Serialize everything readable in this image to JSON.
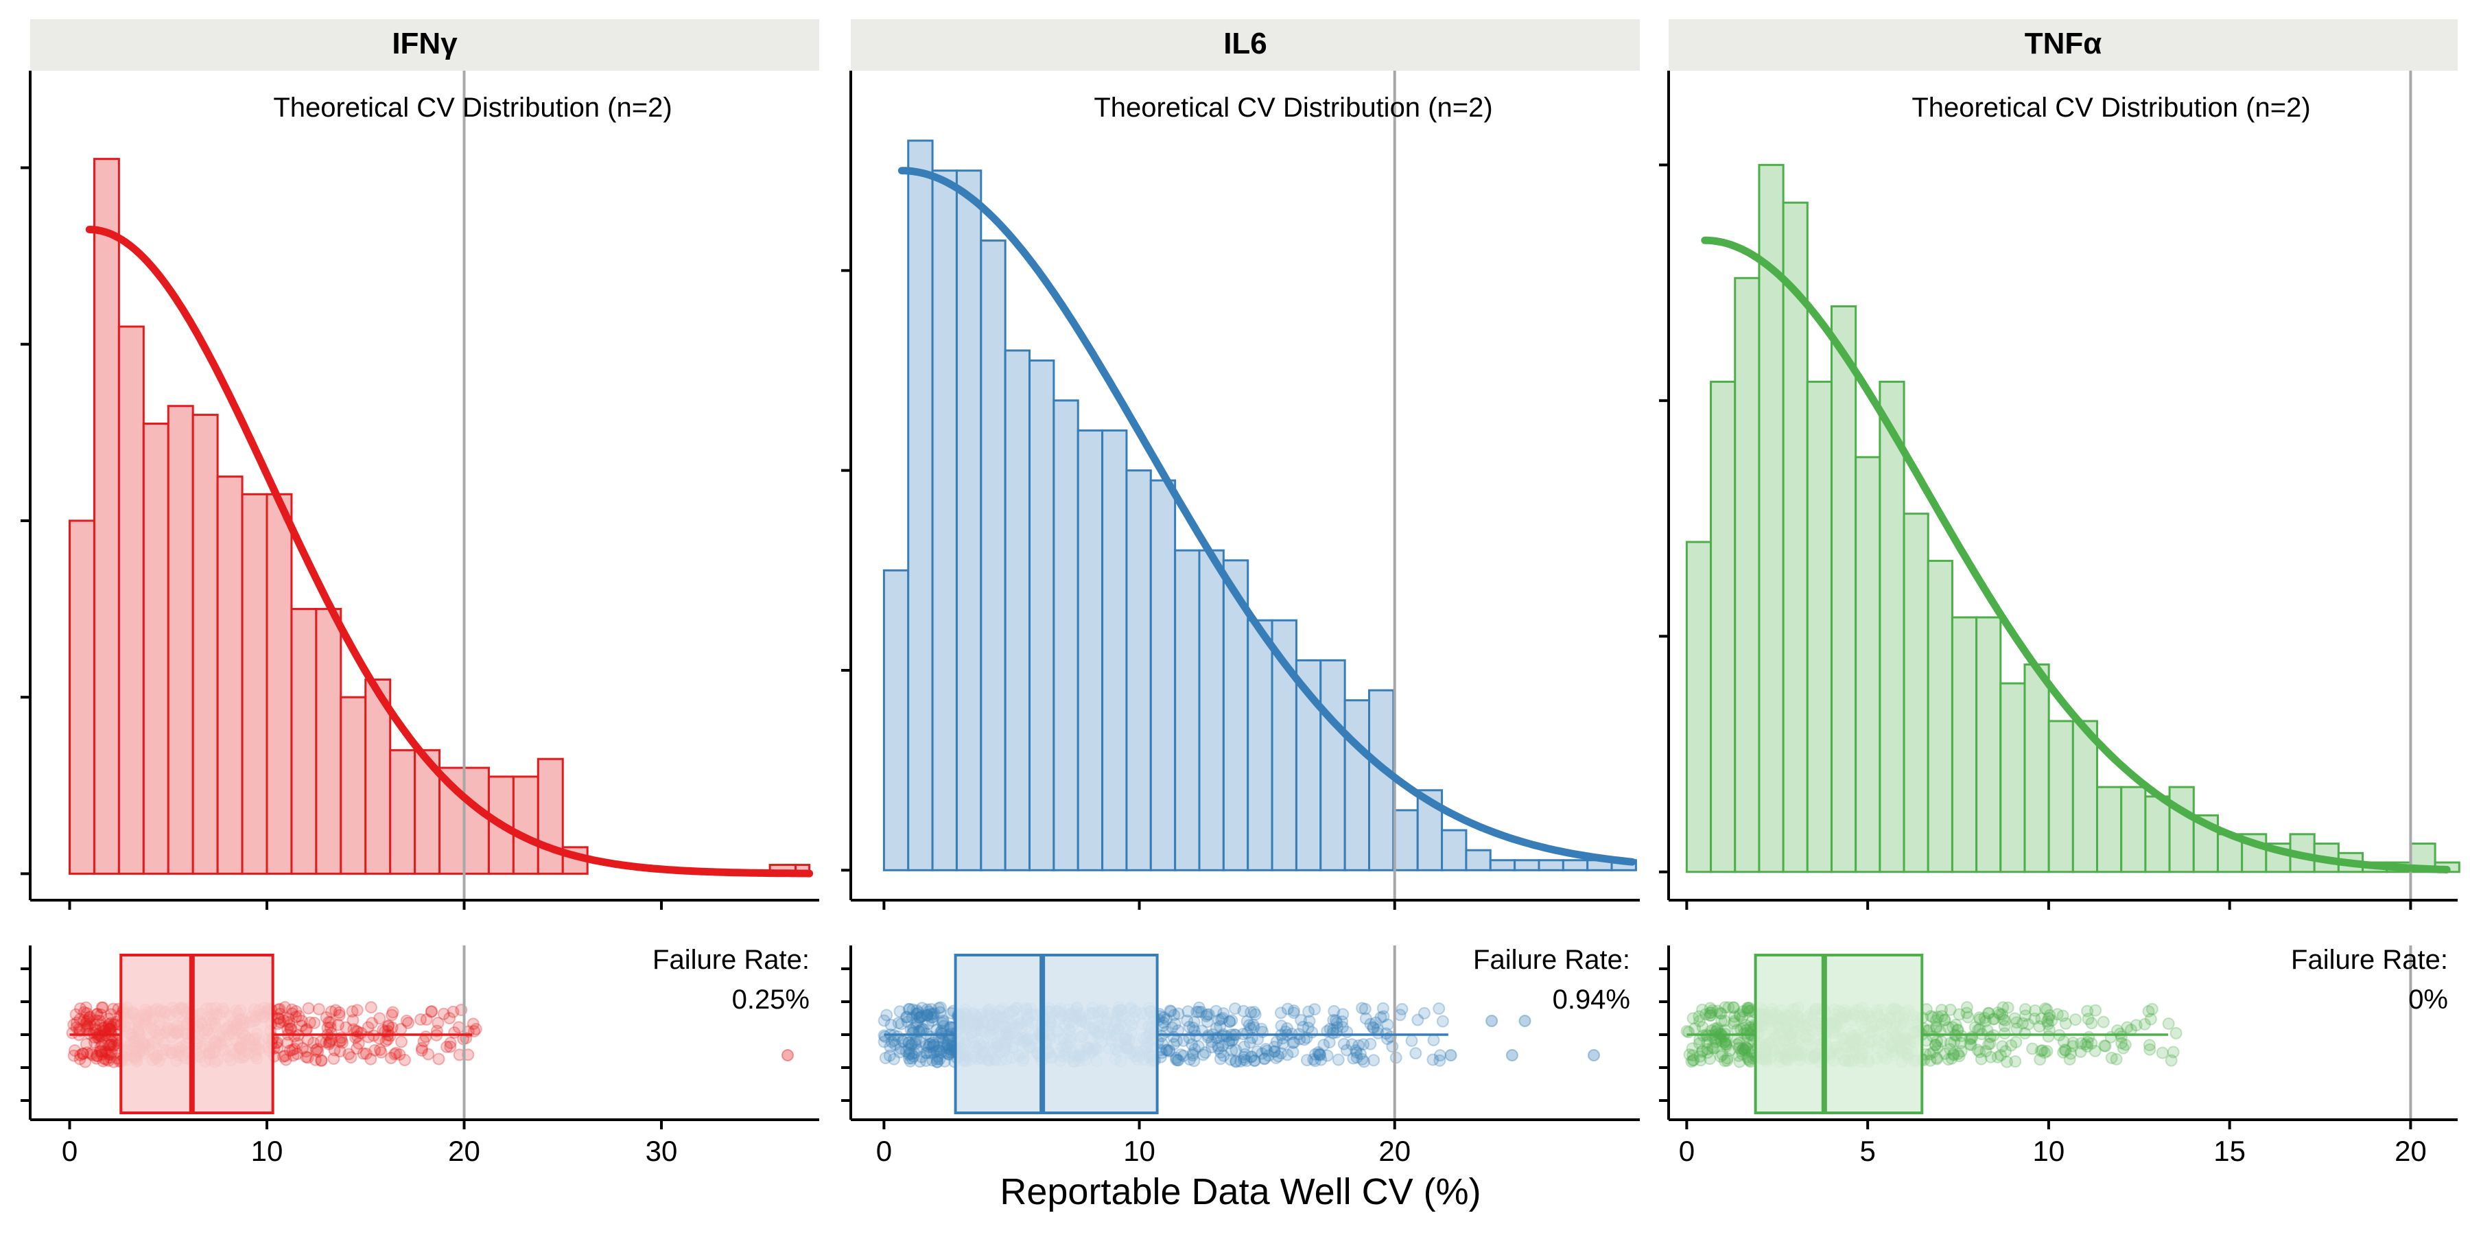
{
  "chart_data": {
    "type": "histogram",
    "xlabel": "Reportable Data Well CV (%)",
    "threshold_x": 20,
    "grid": false,
    "panels": [
      {
        "name": "IFNγ",
        "color": "#E41A1C",
        "xlim": [
          -2,
          38
        ],
        "xticks": [
          "0",
          "10",
          "20",
          "30"
        ],
        "xtick_values": [
          0,
          10,
          20,
          30
        ],
        "annotation": "Theoretical CV Distribution (n=2)",
        "failure_label": "Failure Rate:",
        "failure_rate": "0.25%",
        "histogram": {
          "bin_width": 1.25,
          "bin_start": 0,
          "counts": [
            40,
            81,
            62,
            51,
            53,
            52,
            45,
            43,
            43,
            30,
            30,
            20,
            22,
            14,
            14,
            12,
            12,
            11,
            11,
            13,
            3,
            0,
            0,
            0,
            0,
            0,
            0,
            0,
            0,
            1
          ],
          "comment": ""
        },
        "histogram_extra": [
          {
            "x0": 35.5,
            "x1": 36.8,
            "count": 1
          }
        ],
        "ylim": [
          -3,
          91
        ],
        "yticks": [
          0,
          20,
          40,
          60,
          80
        ],
        "curve_peak": 73,
        "curve_sigma": 9.2,
        "curve_x0": 1,
        "box": {
          "q1": 2.6,
          "median": 6.2,
          "q3": 10.3,
          "whisker_low": 0,
          "whisker_high": 20.4
        },
        "outliers": [
          36.4
        ]
      },
      {
        "name": "IL6",
        "color": "#377EB8",
        "xlim": [
          -1.3,
          29.6
        ],
        "xticks": [
          "0",
          "10",
          "20"
        ],
        "xtick_values": [
          0,
          10,
          20
        ],
        "annotation": "Theoretical CV Distribution (n=2)",
        "failure_label": "Failure Rate:",
        "failure_rate": "0.94%",
        "histogram": {
          "bin_width": 0.95,
          "bin_start": 0,
          "counts": [
            30,
            73,
            70,
            70,
            63,
            52,
            51,
            47,
            44,
            44,
            40,
            39,
            32,
            32,
            31,
            25,
            25,
            21,
            21,
            17,
            18,
            6,
            8,
            4,
            2,
            1,
            1,
            1,
            1,
            1,
            1
          ],
          "comment": ""
        },
        "ylim": [
          -3,
          80
        ],
        "yticks": [
          0,
          20,
          40,
          60
        ],
        "curve_peak": 70,
        "curve_sigma": 9.6,
        "curve_x0": 0.7,
        "box": {
          "q1": 2.8,
          "median": 6.2,
          "q3": 10.7,
          "whisker_low": 0,
          "whisker_high": 22.1
        },
        "outliers": [
          22.2,
          23.8,
          24.6,
          25.1,
          27.8
        ]
      },
      {
        "name": "TNFα",
        "color": "#4DAF4A",
        "xlim": [
          -0.5,
          21.3
        ],
        "xticks": [
          "0",
          "5",
          "10",
          "15",
          "20"
        ],
        "xtick_values": [
          0,
          5,
          10,
          15,
          20
        ],
        "annotation": "Theoretical CV Distribution (n=2)",
        "failure_label": "Failure Rate:",
        "failure_rate": "0%",
        "histogram": {
          "bin_width": 0.667,
          "bin_start": 0,
          "counts": [
            35,
            52,
            63,
            75,
            71,
            52,
            60,
            44,
            52,
            38,
            33,
            27,
            27,
            20,
            22,
            16,
            16,
            9,
            9,
            8,
            9,
            6,
            4,
            4,
            3,
            4,
            3,
            2,
            1,
            1,
            3,
            1,
            0
          ],
          "comment": ""
        },
        "ylim": [
          -3,
          85
        ],
        "yticks": [
          0,
          25,
          50,
          75
        ],
        "curve_peak": 67,
        "curve_sigma": 6.1,
        "curve_x0": 0.5,
        "box": {
          "q1": 1.9,
          "median": 3.8,
          "q3": 6.5,
          "whisker_low": 0,
          "whisker_high": 13.3
        },
        "outliers": []
      }
    ]
  }
}
